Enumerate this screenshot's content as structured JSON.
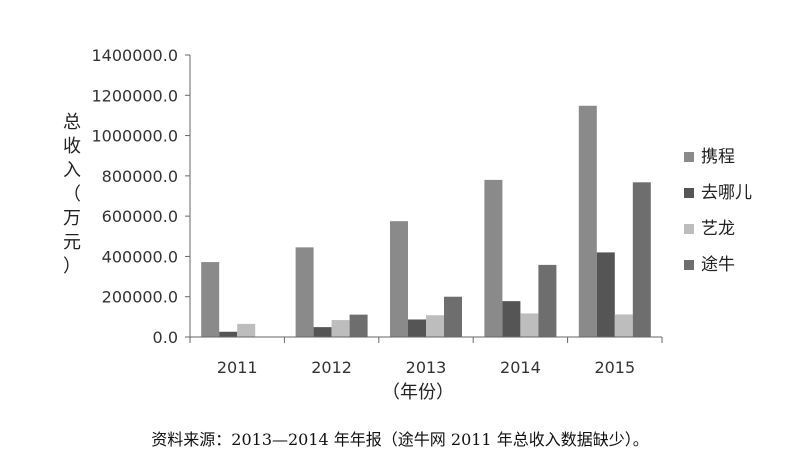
{
  "chart_data": {
    "type": "bar",
    "categories": [
      "2011",
      "2012",
      "2013",
      "2014",
      "2015"
    ],
    "series": [
      {
        "name": "携程",
        "values": [
          372000,
          445000,
          575000,
          780000,
          1148000
        ],
        "color": "#8a8a8a"
      },
      {
        "name": "去哪儿",
        "values": [
          26000,
          49000,
          87000,
          178000,
          420000
        ],
        "color": "#555555"
      },
      {
        "name": "艺龙",
        "values": [
          65000,
          84000,
          108000,
          117000,
          112000
        ],
        "color": "#bdbdbd"
      },
      {
        "name": "途牛",
        "values": [
          null,
          111000,
          200000,
          358000,
          768000
        ],
        "color": "#6e6e6e"
      }
    ],
    "ylim": [
      0,
      1400000
    ],
    "yticks": [
      "0.0",
      "200000.0",
      "400000.0",
      "600000.0",
      "800000.0",
      "1000000.0",
      "1200000.0",
      "1400000.0"
    ],
    "ylabel": "总收入（万元）",
    "xlabel": "（年份）",
    "legend_position": "right",
    "grid": false
  },
  "source_note": "资料来源：2013—2014 年年报（途牛网 2011 年总收入数据缺少）。"
}
